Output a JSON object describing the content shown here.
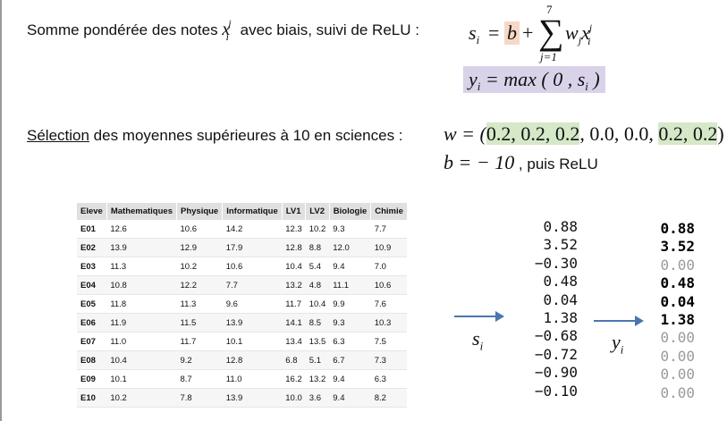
{
  "line1": {
    "text": "Somme pondérée des notes",
    "text2": "avec biais, suivi de ReLU :",
    "x_var": "x",
    "x_sup": "j",
    "x_sub": "i"
  },
  "formula1": {
    "lhs": "s",
    "lhs_sub": "i",
    "eq": "=",
    "bias": "b",
    "plus": "+",
    "sum_top": "7",
    "sum_bottom": "j=1",
    "term": "w",
    "term_sub": "j",
    "term2": "x",
    "term2_sup": "j",
    "term2_sub": "i"
  },
  "formula2": {
    "text": "y",
    "sub": "i",
    "rest": " = max ( 0 , s",
    "rest_sub": "i",
    "close": " )"
  },
  "selection": {
    "underlined": "Sélection",
    "text": " des moyennes supérieures à 10 en sciences :",
    "w_label": "w = (",
    "w_green1": "0.2, 0.2, 0.2",
    "w_mid": ", 0.0, 0.0, ",
    "w_green2": "0.2, 0.2",
    "w_close": ")",
    "b_label": "b = − 10",
    "b_suffix": " , puis ReLU"
  },
  "table": {
    "headers": [
      "Eleve",
      "Mathematiques",
      "Physique",
      "Informatique",
      "LV1",
      "LV2",
      "Biologie",
      "Chimie"
    ],
    "rows": [
      [
        "E01",
        "12.6",
        "10.6",
        "14.2",
        "12.3",
        "10.2",
        "9.3",
        "7.7"
      ],
      [
        "E02",
        "13.9",
        "12.9",
        "17.9",
        "12.8",
        "8.8",
        "12.0",
        "10.9"
      ],
      [
        "E03",
        "11.3",
        "10.2",
        "10.6",
        "10.4",
        "5.4",
        "9.4",
        "7.0"
      ],
      [
        "E04",
        "10.8",
        "12.2",
        "7.7",
        "13.2",
        "4.8",
        "11.1",
        "10.6"
      ],
      [
        "E05",
        "11.8",
        "11.3",
        "9.6",
        "11.7",
        "10.4",
        "9.9",
        "7.6"
      ],
      [
        "E06",
        "11.9",
        "11.5",
        "13.9",
        "14.1",
        "8.5",
        "9.3",
        "10.3"
      ],
      [
        "E07",
        "11.0",
        "11.7",
        "10.1",
        "13.4",
        "13.5",
        "6.3",
        "7.5"
      ],
      [
        "E08",
        "10.4",
        "9.2",
        "12.8",
        "6.8",
        "5.1",
        "6.7",
        "7.3"
      ],
      [
        "E09",
        "10.1",
        "8.7",
        "11.0",
        "16.2",
        "13.2",
        "9.4",
        "6.3"
      ],
      [
        "E10",
        "10.2",
        "7.8",
        "13.9",
        "10.0",
        "3.6",
        "9.4",
        "8.2"
      ]
    ]
  },
  "s_label": "s",
  "s_label_sub": "i",
  "y_label": "y",
  "y_label_sub": "i",
  "s_values": [
    "0.88",
    "3.52",
    "−0.30",
    "0.48",
    "0.04",
    "1.38",
    "−0.68",
    "−0.72",
    "−0.90",
    "−0.10"
  ],
  "y_values": [
    "0.88",
    "3.52",
    "0.00",
    "0.48",
    "0.04",
    "1.38",
    "0.00",
    "0.00",
    "0.00",
    "0.00"
  ],
  "colors": {
    "bias_highlight": "#f7d7c6",
    "relu_highlight": "#d9d2e9",
    "weight_highlight": "#d5e8c8",
    "arrow": "#4a76b0",
    "zero_gray": "#9a9a9a"
  }
}
